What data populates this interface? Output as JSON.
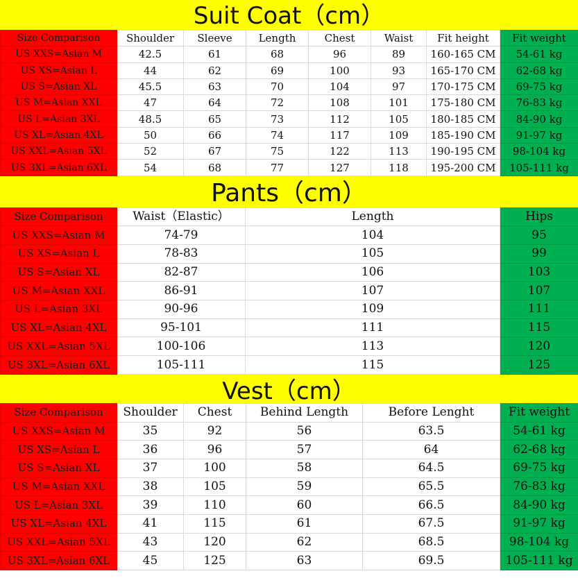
{
  "suit": {
    "title": "Suit Coat（cm）",
    "headers": [
      "Size Comparison",
      "Shoulder",
      "Sleeve",
      "Length",
      "Chest",
      "Waist",
      "Fit height",
      "Fit weight"
    ],
    "rows": [
      [
        "US XXS=Asian M",
        "42.5",
        "61",
        "68",
        "96",
        "89",
        "160-165 CM",
        "54-61 kg"
      ],
      [
        "US XS=Asian L",
        "44",
        "62",
        "69",
        "100",
        "93",
        "165-170 CM",
        "62-68 kg"
      ],
      [
        "US S=Asian XL",
        "45.5",
        "63",
        "70",
        "104",
        "97",
        "170-175 CM",
        "69-75 kg"
      ],
      [
        "US M=Asian XXL",
        "47",
        "64",
        "72",
        "108",
        "101",
        "175-180 CM",
        "76-83 kg"
      ],
      [
        "US L=Asian 3XL",
        "48.5",
        "65",
        "73",
        "112",
        "105",
        "180-185 CM",
        "84-90 kg"
      ],
      [
        "US XL=Asian 4XL",
        "50",
        "66",
        "74",
        "117",
        "109",
        "185-190 CM",
        "91-97 kg"
      ],
      [
        "US XXL=Asian 5XL",
        "52",
        "67",
        "75",
        "122",
        "113",
        "190-195 CM",
        "98-104 kg"
      ],
      [
        "US 3XL=Asian 6XL",
        "54",
        "68",
        "77",
        "127",
        "118",
        "195-200 CM",
        "105-111 kg"
      ]
    ]
  },
  "pants": {
    "title": "Pants（cm）",
    "headers": [
      "Size Comparison",
      "Waist（Elastic）",
      "Length",
      "Hips"
    ],
    "rows": [
      [
        "US XXS=Asian M",
        "74-79",
        "104",
        "95"
      ],
      [
        "US XS=Asian L",
        "78-83",
        "105",
        "99"
      ],
      [
        "US S=Asian XL",
        "82-87",
        "106",
        "103"
      ],
      [
        "US M=Asian XXL",
        "86-91",
        "107",
        "107"
      ],
      [
        "US L=Asian 3XL",
        "90-96",
        "109",
        "111"
      ],
      [
        "US XL=Asian 4XL",
        "95-101",
        "111",
        "115"
      ],
      [
        "US XXL=Asian 5XL",
        "100-106",
        "113",
        "120"
      ],
      [
        "US 3XL=Asian 6XL",
        "105-111",
        "115",
        "125"
      ]
    ]
  },
  "vest": {
    "title": "Vest（cm）",
    "headers": [
      "Size Comparison",
      "Shoulder",
      "Chest",
      "Behind Length",
      "Before Lenght",
      "Fit weight"
    ],
    "rows": [
      [
        "US XXS=Asian M",
        "35",
        "92",
        "56",
        "63.5",
        "54-61 kg"
      ],
      [
        "US XS=Asian L",
        "36",
        "96",
        "57",
        "64",
        "62-68 kg"
      ],
      [
        "US S=Asian XL",
        "37",
        "100",
        "58",
        "64.5",
        "69-75 kg"
      ],
      [
        "US M=Asian XXL",
        "38",
        "105",
        "59",
        "65.5",
        "76-83 kg"
      ],
      [
        "US L=Asian 3XL",
        "39",
        "110",
        "60",
        "66.5",
        "84-90 kg"
      ],
      [
        "US XL=Asian 4XL",
        "41",
        "115",
        "61",
        "67.5",
        "91-97 kg"
      ],
      [
        "US XXL=Asian 5XL",
        "43",
        "120",
        "62",
        "68.5",
        "98-104 kg"
      ],
      [
        "US 3XL=Asian 6XL",
        "45",
        "125",
        "63",
        "69.5",
        "105-111 kg"
      ]
    ]
  },
  "colors": {
    "title_bg": "#ffff00",
    "size_col": "#ff0000",
    "last_col": "#00b050"
  }
}
